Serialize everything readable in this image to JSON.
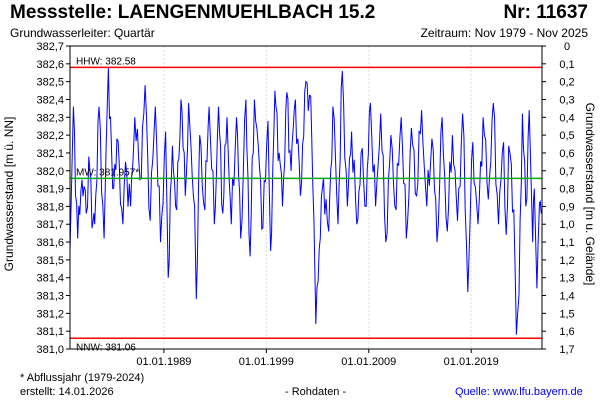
{
  "header": {
    "station": "Messstelle: LAENGENMUEHLBACH 15.2",
    "number": "Nr: 11637",
    "aquifer": "Grundwasserleiter: Quartär",
    "period": "Zeitraum: Nov 1979 - Nov 2025"
  },
  "footer": {
    "footnote": "* Abflussjahr (1979-2024)",
    "created": "erstellt:  14.01.2026",
    "data_kind": "- Rohdaten -",
    "source": "Quelle:  www.lfu.bayern.de"
  },
  "chart_data": {
    "type": "line",
    "title": "Messstelle: LAENGENMUEHLBACH 15.2",
    "ylabel": "Grundwasserstand [m ü. NN]",
    "ylabel_right": "Grundwasserstand [m u. Gelände]",
    "ylim": [
      381.0,
      382.7
    ],
    "ylim_right": [
      0,
      1.7
    ],
    "y_ticks": [
      "381,0",
      "381,1",
      "381,2",
      "381,3",
      "381,4",
      "381,5",
      "381,6",
      "381,7",
      "381,8",
      "381,9",
      "382,0",
      "382,1",
      "382,2",
      "382,3",
      "382,4",
      "382,5",
      "382,6",
      "382,7"
    ],
    "y_ticks_right": [
      "0",
      "0,1",
      "0,2",
      "0,3",
      "0,4",
      "0,5",
      "0,6",
      "0,7",
      "0,8",
      "0,9",
      "1,0",
      "1,1",
      "1,2",
      "1,3",
      "1,4",
      "1,5",
      "1,6",
      "1,7"
    ],
    "xlim": [
      "1979-11-01",
      "2025-11-30"
    ],
    "x_ticks": [
      {
        "date": "1989-01-01",
        "label": "01.01.1989"
      },
      {
        "date": "1999-01-01",
        "label": "01.01.1999"
      },
      {
        "date": "2009-01-01",
        "label": "01.01.2009"
      },
      {
        "date": "2019-01-01",
        "label": "01.01.2019"
      }
    ],
    "reference_lines": [
      {
        "label": "HHW: 382.58",
        "value": 382.58,
        "color": "#ff0000"
      },
      {
        "label": "MW: 381.957*",
        "value": 381.957,
        "color": "#00aa00"
      },
      {
        "label": "NNW: 381.06",
        "value": 381.06,
        "color": "#ff0000"
      }
    ],
    "series": [
      {
        "color": "#0000ff",
        "points": [
          [
            "1979-11-01",
            381.55
          ],
          [
            "1980-03-01",
            382.36
          ],
          [
            "1980-08-01",
            381.62
          ],
          [
            "1981-01-01",
            381.95
          ],
          [
            "1981-06-01",
            381.76
          ],
          [
            "1981-09-01",
            382.08
          ],
          [
            "1982-02-01",
            381.72
          ],
          [
            "1982-04-01",
            381.7
          ],
          [
            "1982-09-01",
            382.36
          ],
          [
            "1983-03-01",
            381.62
          ],
          [
            "1983-08-01",
            382.58
          ],
          [
            "1984-01-01",
            381.9
          ],
          [
            "1984-06-01",
            382.18
          ],
          [
            "1985-01-01",
            381.7
          ],
          [
            "1985-04-01",
            382.05
          ],
          [
            "1985-10-01",
            381.8
          ],
          [
            "1986-03-01",
            382.3
          ],
          [
            "1986-09-01",
            381.95
          ],
          [
            "1987-03-01",
            382.48
          ],
          [
            "1987-09-01",
            381.72
          ],
          [
            "1988-03-01",
            382.36
          ],
          [
            "1988-09-01",
            381.6
          ],
          [
            "1989-03-01",
            382.22
          ],
          [
            "1989-06-01",
            381.4
          ],
          [
            "1989-11-01",
            382.14
          ],
          [
            "1990-04-01",
            381.78
          ],
          [
            "1990-09-01",
            382.4
          ],
          [
            "1991-02-01",
            381.86
          ],
          [
            "1991-06-01",
            382.38
          ],
          [
            "1992-01-01",
            381.8
          ],
          [
            "1992-03-01",
            381.28
          ],
          [
            "1992-07-01",
            382.2
          ],
          [
            "1993-01-01",
            381.78
          ],
          [
            "1993-06-01",
            382.36
          ],
          [
            "1993-12-01",
            381.7
          ],
          [
            "1994-05-01",
            382.36
          ],
          [
            "1994-10-01",
            381.76
          ],
          [
            "1995-03-01",
            382.3
          ],
          [
            "1995-08-01",
            381.7
          ],
          [
            "1996-02-01",
            382.3
          ],
          [
            "1996-07-01",
            381.62
          ],
          [
            "1997-01-01",
            382.4
          ],
          [
            "1997-06-01",
            381.52
          ],
          [
            "1997-11-01",
            382.4
          ],
          [
            "1998-05-01",
            382.02
          ],
          [
            "1998-09-01",
            381.68
          ],
          [
            "1999-03-01",
            382.28
          ],
          [
            "1999-06-01",
            381.55
          ],
          [
            "1999-11-01",
            382.45
          ],
          [
            "2000-04-01",
            382.1
          ],
          [
            "2000-08-01",
            381.8
          ],
          [
            "2001-01-01",
            382.44
          ],
          [
            "2001-06-01",
            382.0
          ],
          [
            "2001-11-01",
            382.4
          ],
          [
            "2002-05-01",
            381.86
          ],
          [
            "2002-10-01",
            382.44
          ],
          [
            "2003-05-01",
            382.42
          ],
          [
            "2003-10-01",
            381.4
          ],
          [
            "2003-11-01",
            381.14
          ],
          [
            "2004-03-01",
            381.56
          ],
          [
            "2004-08-01",
            381.96
          ],
          [
            "2005-02-01",
            381.66
          ],
          [
            "2005-07-01",
            382.36
          ],
          [
            "2006-01-01",
            381.7
          ],
          [
            "2006-06-01",
            382.56
          ],
          [
            "2006-12-01",
            381.8
          ],
          [
            "2007-05-01",
            382.22
          ],
          [
            "2007-11-01",
            381.7
          ],
          [
            "2008-04-01",
            382.1
          ],
          [
            "2008-10-01",
            381.8
          ],
          [
            "2009-03-01",
            382.38
          ],
          [
            "2009-09-01",
            381.8
          ],
          [
            "2010-03-01",
            382.32
          ],
          [
            "2010-09-01",
            381.6
          ],
          [
            "2011-03-01",
            382.2
          ],
          [
            "2011-09-01",
            381.78
          ],
          [
            "2012-03-01",
            382.3
          ],
          [
            "2012-09-01",
            381.62
          ],
          [
            "2013-03-01",
            382.24
          ],
          [
            "2013-09-01",
            381.86
          ],
          [
            "2014-03-01",
            382.34
          ],
          [
            "2014-09-01",
            381.8
          ],
          [
            "2015-03-01",
            382.18
          ],
          [
            "2015-09-01",
            381.6
          ],
          [
            "2016-03-01",
            382.3
          ],
          [
            "2016-09-01",
            381.66
          ],
          [
            "2017-03-01",
            382.2
          ],
          [
            "2017-09-01",
            381.72
          ],
          [
            "2018-03-01",
            382.32
          ],
          [
            "2018-09-01",
            381.32
          ],
          [
            "2019-03-01",
            382.16
          ],
          [
            "2019-09-01",
            381.7
          ],
          [
            "2020-03-01",
            382.3
          ],
          [
            "2020-09-01",
            381.84
          ],
          [
            "2021-03-01",
            382.38
          ],
          [
            "2021-09-01",
            381.7
          ],
          [
            "2022-03-01",
            382.16
          ],
          [
            "2022-06-01",
            381.64
          ],
          [
            "2022-09-01",
            382.14
          ],
          [
            "2023-03-01",
            381.78
          ],
          [
            "2023-06-01",
            381.08
          ],
          [
            "2023-09-01",
            381.3
          ],
          [
            "2024-01-01",
            382.32
          ],
          [
            "2024-05-01",
            381.8
          ],
          [
            "2024-09-01",
            382.34
          ],
          [
            "2025-01-01",
            381.6
          ],
          [
            "2025-03-01",
            381.9
          ],
          [
            "2025-06-01",
            381.34
          ],
          [
            "2025-09-01",
            381.82
          ],
          [
            "2025-11-01",
            381.76
          ]
        ]
      }
    ]
  }
}
